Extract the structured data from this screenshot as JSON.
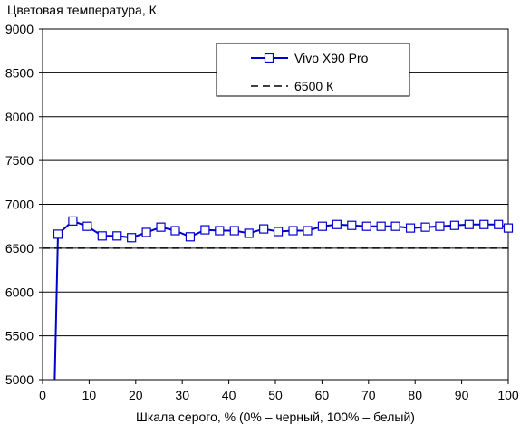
{
  "chart_data": {
    "type": "line",
    "title": "Цветовая температура, К",
    "xlabel": "Шкала серого, % (0% – черный, 100% – белый)",
    "ylabel": "",
    "xlim": [
      0,
      100
    ],
    "ylim": [
      5000,
      9000
    ],
    "x_ticks": [
      0,
      10,
      20,
      30,
      40,
      50,
      60,
      70,
      80,
      90,
      100
    ],
    "y_ticks": [
      5000,
      5500,
      6000,
      6500,
      7000,
      7500,
      8000,
      8500,
      9000
    ],
    "x_tick_labels": [
      "0",
      "10",
      "20",
      "30",
      "40",
      "50",
      "60",
      "70",
      "80",
      "90",
      "100"
    ],
    "y_tick_labels": [
      "5000",
      "5500",
      "6000",
      "6500",
      "7000",
      "7500",
      "8000",
      "8500",
      "9000"
    ],
    "grid": "horizontal",
    "legend_position": "top-right",
    "series": [
      {
        "name": "Vivo X90 Pro",
        "color": "#0000cc",
        "marker": "open-square",
        "line": "solid",
        "x": [
          2.6,
          3.3,
          6.5,
          9.6,
          12.8,
          16.0,
          19.1,
          22.3,
          25.4,
          28.5,
          31.7,
          34.9,
          38.0,
          41.2,
          44.3,
          47.5,
          50.6,
          53.8,
          56.9,
          60.1,
          63.2,
          66.4,
          69.6,
          72.7,
          75.8,
          79.0,
          82.2,
          85.3,
          88.5,
          91.6,
          94.8,
          97.9,
          100.0
        ],
        "y": [
          5000,
          6660,
          6810,
          6750,
          6640,
          6640,
          6620,
          6680,
          6740,
          6700,
          6630,
          6710,
          6700,
          6700,
          6670,
          6720,
          6690,
          6700,
          6700,
          6750,
          6770,
          6760,
          6750,
          6750,
          6750,
          6730,
          6740,
          6750,
          6760,
          6770,
          6770,
          6770,
          6730
        ]
      },
      {
        "name": "6500 К",
        "color": "#000000",
        "marker": "none",
        "line": "dashed",
        "x": [
          0,
          100
        ],
        "y": [
          6500,
          6500
        ]
      }
    ]
  }
}
